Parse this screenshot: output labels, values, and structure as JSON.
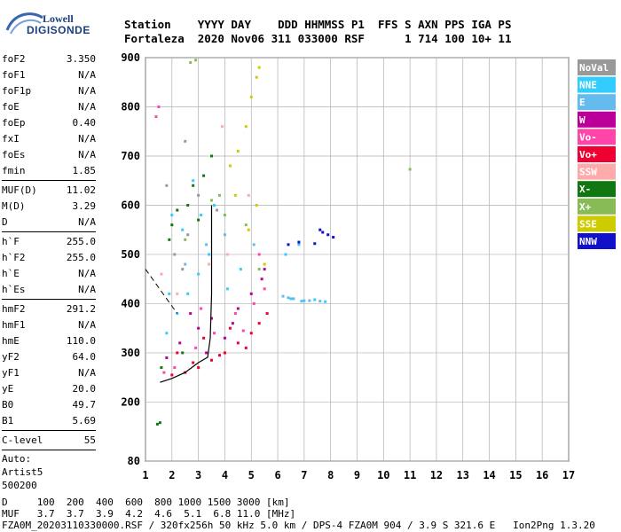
{
  "logo": {
    "line1": "Lowell",
    "line2": "DIGISONDE"
  },
  "header": {
    "row1": "Station    YYYY DAY    DDD HHMMSS P1  FFS S AXN PPS IGA PS",
    "row2": "Fortaleza  2020 Nov06 311 033000 RSF      1 714 100 10+ 11"
  },
  "params": {
    "group1": [
      {
        "k": "foF2",
        "v": "3.350"
      },
      {
        "k": "foF1",
        "v": "N/A"
      },
      {
        "k": "foF1p",
        "v": "N/A"
      },
      {
        "k": "foE",
        "v": "N/A"
      },
      {
        "k": "foEp",
        "v": "0.40"
      },
      {
        "k": "fxI",
        "v": "N/A"
      },
      {
        "k": "foEs",
        "v": "N/A"
      },
      {
        "k": "fmin",
        "v": "1.85"
      }
    ],
    "group2": [
      {
        "k": "MUF(D)",
        "v": "11.02"
      },
      {
        "k": "M(D)",
        "v": "3.29"
      },
      {
        "k": "D",
        "v": "N/A"
      }
    ],
    "group3": [
      {
        "k": "h`F",
        "v": "255.0"
      },
      {
        "k": "h`F2",
        "v": "255.0"
      },
      {
        "k": "h`E",
        "v": "N/A"
      },
      {
        "k": "h`Es",
        "v": "N/A"
      }
    ],
    "group4": [
      {
        "k": "hmF2",
        "v": "291.2"
      },
      {
        "k": "hmF1",
        "v": "N/A"
      },
      {
        "k": "hmE",
        "v": "110.0"
      },
      {
        "k": "yF2",
        "v": "64.0"
      },
      {
        "k": "yF1",
        "v": "N/A"
      },
      {
        "k": "yE",
        "v": "20.0"
      },
      {
        "k": "B0",
        "v": "49.7"
      },
      {
        "k": "B1",
        "v": "5.69"
      }
    ],
    "clevel": {
      "k": "C-level",
      "v": "55"
    },
    "auto": [
      "Auto:",
      "Artist5",
      "500200"
    ]
  },
  "footer": {
    "d_row": "D     100  200  400  600  800 1000 1500 3000 [km]",
    "muf_row": "MUF   3.7  3.7  3.9  4.2  4.6  5.1  6.8 11.0 [MHz]",
    "file_row": "FZA0M_20203110330000.RSF / 320fx256h 50 kHz 5.0 km / DPS-4 FZA0M 904 / 3.9 S 321.6 E   Ion2Png 1.3.20"
  },
  "legend": [
    {
      "label": "NoVal",
      "color": "#999999"
    },
    {
      "label": "NNE",
      "color": "#33ccff"
    },
    {
      "label": "E",
      "color": "#66bbee"
    },
    {
      "label": "W",
      "color": "#bb0099"
    },
    {
      "label": "Vo-",
      "color": "#ff44aa"
    },
    {
      "label": "Vo+",
      "color": "#ee0033"
    },
    {
      "label": "SSW",
      "color": "#ffaaaa"
    },
    {
      "label": "X-",
      "color": "#117711"
    },
    {
      "label": "X+",
      "color": "#88bb55"
    },
    {
      "label": "SSE",
      "color": "#cccc00"
    },
    {
      "label": "NNW",
      "color": "#1111cc"
    }
  ],
  "chart_data": {
    "type": "scatter",
    "title": "",
    "xlabel": "",
    "ylabel": "",
    "xlim": [
      1,
      17
    ],
    "ylim": [
      80,
      900
    ],
    "xticks": [
      1,
      2,
      3,
      4,
      5,
      6,
      7,
      8,
      9,
      10,
      11,
      12,
      13,
      14,
      15,
      16,
      17
    ],
    "yticks": [
      80,
      200,
      300,
      400,
      500,
      600,
      700,
      800,
      900
    ],
    "grid": true,
    "legend_position": "right",
    "series": [
      {
        "name": "Vo+",
        "color": "#ee0033",
        "points": [
          [
            2.0,
            255
          ],
          [
            2.5,
            260
          ],
          [
            3.0,
            270
          ],
          [
            3.5,
            285
          ],
          [
            4.0,
            300
          ],
          [
            4.5,
            320
          ],
          [
            5.0,
            340
          ],
          [
            5.3,
            360
          ],
          [
            2.2,
            300
          ],
          [
            3.2,
            330
          ],
          [
            4.2,
            350
          ],
          [
            4.8,
            310
          ],
          [
            5.6,
            380
          ],
          [
            2.8,
            280
          ],
          [
            3.8,
            295
          ]
        ]
      },
      {
        "name": "W",
        "color": "#bb0099",
        "points": [
          [
            1.8,
            290
          ],
          [
            2.3,
            320
          ],
          [
            3.0,
            350
          ],
          [
            3.5,
            370
          ],
          [
            4.0,
            330
          ],
          [
            4.5,
            390
          ],
          [
            5.0,
            420
          ],
          [
            5.4,
            450
          ],
          [
            2.7,
            380
          ],
          [
            3.3,
            300
          ],
          [
            4.3,
            360
          ],
          [
            5.5,
            470
          ]
        ]
      },
      {
        "name": "Vo-",
        "color": "#ff44aa",
        "points": [
          [
            2.1,
            270
          ],
          [
            2.9,
            310
          ],
          [
            3.6,
            340
          ],
          [
            4.4,
            380
          ],
          [
            5.1,
            400
          ],
          [
            5.5,
            430
          ],
          [
            1.7,
            260
          ],
          [
            3.1,
            390
          ],
          [
            4.7,
            345
          ],
          [
            5.3,
            500
          ],
          [
            1.5,
            800
          ],
          [
            1.4,
            780
          ]
        ]
      },
      {
        "name": "NNE",
        "color": "#33ccff",
        "points": [
          [
            1.8,
            340
          ],
          [
            2.2,
            380
          ],
          [
            2.6,
            420
          ],
          [
            3.0,
            460
          ],
          [
            3.4,
            500
          ],
          [
            1.9,
            420
          ],
          [
            2.4,
            550
          ],
          [
            3.1,
            580
          ],
          [
            3.6,
            600
          ],
          [
            4.1,
            430
          ],
          [
            4.6,
            470
          ],
          [
            6.5,
            410
          ],
          [
            6.9,
            405
          ],
          [
            7.4,
            408
          ],
          [
            7.8,
            404
          ],
          [
            6.3,
            500
          ],
          [
            6.8,
            520
          ],
          [
            2.0,
            580
          ],
          [
            2.8,
            650
          ]
        ]
      },
      {
        "name": "E",
        "color": "#66bbee",
        "points": [
          [
            6.2,
            415
          ],
          [
            6.4,
            412
          ],
          [
            6.6,
            410
          ],
          [
            7.0,
            406
          ],
          [
            7.2,
            406
          ],
          [
            7.6,
            405
          ],
          [
            2.5,
            480
          ],
          [
            3.3,
            520
          ],
          [
            4.0,
            540
          ],
          [
            5.1,
            520
          ]
        ]
      },
      {
        "name": "X-",
        "color": "#117711",
        "points": [
          [
            2.0,
            560
          ],
          [
            2.2,
            590
          ],
          [
            2.6,
            600
          ],
          [
            2.8,
            640
          ],
          [
            3.2,
            660
          ],
          [
            3.5,
            700
          ],
          [
            1.9,
            530
          ],
          [
            2.4,
            300
          ],
          [
            1.6,
            270
          ],
          [
            3.0,
            570
          ],
          [
            1.45,
            155
          ],
          [
            1.55,
            158
          ]
        ]
      },
      {
        "name": "X+",
        "color": "#88bb55",
        "points": [
          [
            2.5,
            530
          ],
          [
            3.5,
            610
          ],
          [
            4.0,
            580
          ],
          [
            4.8,
            560
          ],
          [
            2.9,
            895
          ],
          [
            2.7,
            890
          ],
          [
            11.0,
            673
          ],
          [
            5.3,
            470
          ],
          [
            3.8,
            620
          ]
        ]
      },
      {
        "name": "SSE",
        "color": "#cccc00",
        "points": [
          [
            4.2,
            680
          ],
          [
            4.5,
            710
          ],
          [
            4.8,
            760
          ],
          [
            5.0,
            820
          ],
          [
            5.2,
            860
          ],
          [
            5.3,
            880
          ],
          [
            4.4,
            620
          ],
          [
            4.9,
            550
          ],
          [
            5.2,
            600
          ],
          [
            5.5,
            480
          ]
        ]
      },
      {
        "name": "SSW",
        "color": "#ffaaaa",
        "points": [
          [
            2.2,
            420
          ],
          [
            3.4,
            480
          ],
          [
            4.1,
            500
          ],
          [
            4.9,
            620
          ],
          [
            1.6,
            460
          ],
          [
            3.9,
            760
          ]
        ]
      },
      {
        "name": "NoVal",
        "color": "#999999",
        "points": [
          [
            2.1,
            500
          ],
          [
            2.6,
            540
          ],
          [
            3.0,
            620
          ],
          [
            3.7,
            590
          ],
          [
            2.4,
            470
          ],
          [
            1.8,
            640
          ],
          [
            2.5,
            730
          ]
        ]
      },
      {
        "name": "NNW",
        "color": "#1111cc",
        "points": [
          [
            6.4,
            520
          ],
          [
            6.8,
            525
          ],
          [
            7.4,
            522
          ],
          [
            7.7,
            545
          ],
          [
            7.9,
            540
          ],
          [
            8.1,
            535
          ],
          [
            7.6,
            550
          ]
        ]
      }
    ],
    "profile_curve": [
      [
        1.55,
        240
      ],
      [
        2.0,
        248
      ],
      [
        2.5,
        260
      ],
      [
        3.0,
        280
      ],
      [
        3.35,
        291
      ],
      [
        3.45,
        330
      ],
      [
        3.5,
        420
      ],
      [
        3.5,
        550
      ],
      [
        3.5,
        600
      ]
    ],
    "trace_curve": [
      [
        1.0,
        470
      ],
      [
        1.4,
        440
      ],
      [
        1.8,
        410
      ],
      [
        2.2,
        380
      ]
    ]
  }
}
